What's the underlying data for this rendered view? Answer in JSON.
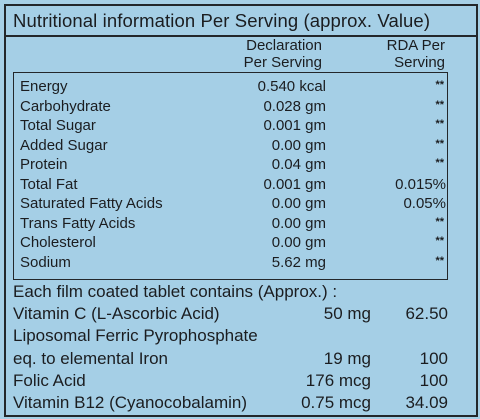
{
  "title": "Nutritional information Per Serving (approx. Value)",
  "headers": {
    "declaration": [
      "Declaration",
      "Per Serving"
    ],
    "rda": [
      "RDA Per",
      "Serving"
    ]
  },
  "nutrients": [
    {
      "name": "Energy",
      "value": "0.540 kcal",
      "rda": "**"
    },
    {
      "name": "Carbohydrate",
      "value": "0.028 gm",
      "rda": "**"
    },
    {
      "name": "Total Sugar",
      "value": "0.001 gm",
      "rda": "**"
    },
    {
      "name": "Added Sugar",
      "value": "0.00 gm",
      "rda": "**"
    },
    {
      "name": "Protein",
      "value": "0.04 gm",
      "rda": "**"
    },
    {
      "name": "Total Fat",
      "value": "0.001 gm",
      "rda": "0.015%"
    },
    {
      "name": "Saturated Fatty Acids",
      "value": "0.00 gm",
      "rda": "0.05%"
    },
    {
      "name": "Trans Fatty Acids",
      "value": "0.00 gm",
      "rda": "**"
    },
    {
      "name": "Cholesterol",
      "value": "0.00 gm",
      "rda": "**"
    },
    {
      "name": "Sodium",
      "value": "5.62 mg",
      "rda": "**"
    }
  ],
  "tablet": {
    "heading": "Each film coated tablet contains (Approx.) :",
    "rows": [
      {
        "name": "Vitamin C (L-Ascorbic Acid)",
        "amount": "50 mg",
        "rda": "62.50"
      },
      {
        "name": "Liposomal Ferric Pyrophosphate",
        "amount": "",
        "rda": ""
      },
      {
        "name": "eq. to elemental Iron",
        "amount": "19 mg",
        "rda": "100"
      },
      {
        "name": "Folic Acid",
        "amount": "176 mcg",
        "rda": "100"
      },
      {
        "name": "Vitamin B12 (Cyanocobalamin)",
        "amount": "0.75 mcg",
        "rda": "34.09"
      }
    ]
  }
}
